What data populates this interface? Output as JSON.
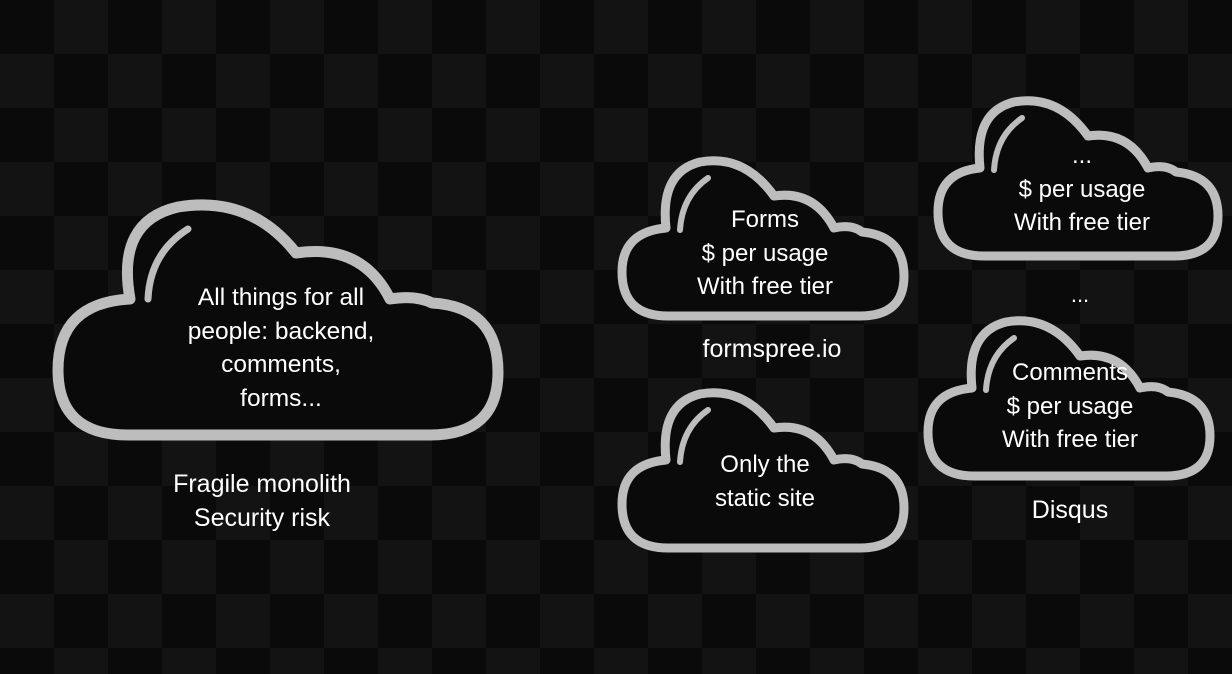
{
  "clouds": {
    "monolith": {
      "lines": [
        "All things for all",
        "people: backend,",
        "comments,",
        "forms..."
      ],
      "caption": [
        "Fragile monolith",
        "Security risk"
      ]
    },
    "forms": {
      "lines": [
        "Forms",
        "$ per usage",
        "With free tier"
      ],
      "caption": "formspree.io"
    },
    "static": {
      "lines": [
        "Only the",
        "static site"
      ]
    },
    "other": {
      "lines": [
        "...",
        "$ per usage",
        "With free tier"
      ],
      "between": "..."
    },
    "comments": {
      "lines": [
        "Comments",
        "$ per usage",
        "With free tier"
      ],
      "caption": "Disqus"
    }
  },
  "colors": {
    "cloud_outline": "#bdbdbd",
    "cloud_fill": "#0a0a0a",
    "text": "#ffffff",
    "background": "#0a0a0a"
  },
  "icons": {
    "cloud": "cloud-icon"
  }
}
